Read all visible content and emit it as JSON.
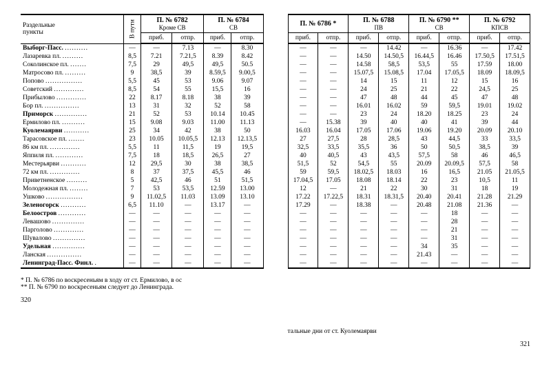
{
  "left": {
    "col_station": "Раздельные\nпункты",
    "col_vputi": "В пути",
    "trains": [
      {
        "no": "П. № 6782",
        "sub": "Кроме СВ"
      },
      {
        "no": "П. № 6784",
        "sub": "СВ"
      }
    ],
    "prib": "приб.",
    "otpr": "отпр.",
    "stations": [
      {
        "name": "Выборг-Пасс.",
        "vp": "—",
        "cells": [
          "—",
          "7.13",
          "—",
          "8.30"
        ]
      },
      {
        "name": "Лазаревка пл.",
        "vp": "8,5",
        "cells": [
          "7.21",
          "7.21,5",
          "8.39",
          "8.42"
        ]
      },
      {
        "name": "Соколинское пл.",
        "vp": "7,5",
        "cells": [
          "29",
          "49,5",
          "49,5",
          "50.5"
        ]
      },
      {
        "name": "Матросово пл.",
        "vp": "9",
        "cells": [
          "38,5",
          "39",
          "8.59,5",
          "9.00,5"
        ]
      },
      {
        "name": "Попово",
        "vp": "5,5",
        "cells": [
          "45",
          "53",
          "9.06",
          "9.07"
        ]
      },
      {
        "name": "Советский",
        "vp": "8,5",
        "cells": [
          "54",
          "55",
          "15,5",
          "16"
        ]
      },
      {
        "name": "Прибылово",
        "vp": "22",
        "cells": [
          "8.17",
          "8.18",
          "38",
          "39"
        ]
      },
      {
        "name": "Бор пл.",
        "vp": "13",
        "cells": [
          "31",
          "32",
          "52",
          "58"
        ]
      },
      {
        "name": "Приморск",
        "vp": "21",
        "cells": [
          "52",
          "53",
          "10.14",
          "10.45"
        ]
      },
      {
        "name": "Ермилово пл.",
        "vp": "15",
        "cells": [
          "9.08",
          "9.03",
          "11.00",
          "11.13"
        ]
      },
      {
        "name": "Куолемаярви",
        "vp": "25",
        "cells": [
          "34",
          "42",
          "38",
          "50"
        ]
      },
      {
        "name": "Тарасовское пл.",
        "vp": "23",
        "cells": [
          "10.05",
          "10.05,5",
          "12.13",
          "12.13,5"
        ]
      },
      {
        "name": "86 км пл.",
        "vp": "5,5",
        "cells": [
          "11",
          "11,5",
          "19",
          "19,5"
        ]
      },
      {
        "name": "Яппиля пл.",
        "vp": "7,5",
        "cells": [
          "18",
          "18,5",
          "26,5",
          "27"
        ]
      },
      {
        "name": "Местерьярви",
        "vp": "12",
        "cells": [
          "29,5",
          "30",
          "38",
          "38,5"
        ]
      },
      {
        "name": "72 км пл.",
        "vp": "8",
        "cells": [
          "37",
          "37,5",
          "45,5",
          "46"
        ]
      },
      {
        "name": "Приветненское",
        "vp": "5",
        "cells": [
          "42,5",
          "46",
          "51",
          "51,5"
        ]
      },
      {
        "name": "Молодежная пл.",
        "vp": "7",
        "cells": [
          "53",
          "53,5",
          "12.59",
          "13.00"
        ]
      },
      {
        "name": "Ушково",
        "vp": "9",
        "cells": [
          "11.02,5",
          "11.03",
          "13.09",
          "13.10"
        ]
      },
      {
        "name": "Зеленогорск",
        "vp": "6,5",
        "cells": [
          "11.10",
          "—",
          "13.17",
          "—"
        ]
      },
      {
        "name": "Белоостров",
        "vp": "—",
        "cells": [
          "—",
          "—",
          "—",
          "—"
        ]
      },
      {
        "name": "Левашово",
        "vp": "—",
        "cells": [
          "—",
          "—",
          "—",
          "—"
        ]
      },
      {
        "name": "Парголово",
        "vp": "—",
        "cells": [
          "—",
          "—",
          "—",
          "—"
        ]
      },
      {
        "name": "Шувалово",
        "vp": "—",
        "cells": [
          "—",
          "—",
          "—",
          "—"
        ]
      },
      {
        "name": "Удельная",
        "vp": "—",
        "cells": [
          "—",
          "—",
          "—",
          "—"
        ]
      },
      {
        "name": "Ланская",
        "vp": "—",
        "cells": [
          "—",
          "—",
          "—",
          "—"
        ]
      },
      {
        "name": "Ленинград-Пасс. Финл.",
        "vp": "—",
        "cells": [
          "—",
          "—",
          "—",
          "—"
        ]
      }
    ],
    "footnote1": "* П. № 6786 по воскресеньям в ходу от ст. Ермилово, в ос",
    "footnote2": "** П. № 6790 по воскресеньям следует до Ленинграда.",
    "pagenum": "320"
  },
  "right": {
    "trains": [
      {
        "no": "П. № 6786 *",
        "sub": ""
      },
      {
        "no": "П. № 6788",
        "sub": "ПВ"
      },
      {
        "no": "П. № 6790 **",
        "sub": "СВ"
      },
      {
        "no": "П. № 6792",
        "sub": "КПСВ"
      }
    ],
    "prib": "приб.",
    "otpr": "отпр.",
    "rows": [
      [
        "—",
        "—",
        "—",
        "14.42",
        "—",
        "16.36",
        "—",
        "17.42"
      ],
      [
        "—",
        "—",
        "14.50",
        "14.50,5",
        "16.44,5",
        "16.46",
        "17.50,5",
        "17.51,5"
      ],
      [
        "—",
        "—",
        "14.58",
        "58,5",
        "53,5",
        "55",
        "17.59",
        "18.00"
      ],
      [
        "—",
        "—",
        "15.07,5",
        "15.08,5",
        "17.04",
        "17.05,5",
        "18.09",
        "18.09,5"
      ],
      [
        "—",
        "—",
        "14",
        "15",
        "11",
        "12",
        "15",
        "16"
      ],
      [
        "—",
        "—",
        "24",
        "25",
        "21",
        "22",
        "24,5",
        "25"
      ],
      [
        "—",
        "—",
        "47",
        "48",
        "44",
        "45",
        "47",
        "48"
      ],
      [
        "—",
        "—",
        "16.01",
        "16.02",
        "59",
        "59,5",
        "19.01",
        "19.02"
      ],
      [
        "—",
        "—",
        "23",
        "24",
        "18.20",
        "18.25",
        "23",
        "24"
      ],
      [
        "—",
        "15.38",
        "39",
        "40",
        "40",
        "41",
        "39",
        "44"
      ],
      [
        "16.03",
        "16.04",
        "17.05",
        "17.06",
        "19.06",
        "19.20",
        "20.09",
        "20.10"
      ],
      [
        "27",
        "27,5",
        "28",
        "28,5",
        "43",
        "44,5",
        "33",
        "33,5"
      ],
      [
        "32,5",
        "33,5",
        "35,5",
        "36",
        "50",
        "50,5",
        "38,5",
        "39"
      ],
      [
        "40",
        "40,5",
        "43",
        "43,5",
        "57,5",
        "58",
        "46",
        "46,5"
      ],
      [
        "51,5",
        "52",
        "54,5",
        "55",
        "20.09",
        "20.09,5",
        "57,5",
        "58"
      ],
      [
        "59",
        "59,5",
        "18.02,5",
        "18.03",
        "16",
        "16,5",
        "21.05",
        "21.05,5"
      ],
      [
        "17.04,5",
        "17.05",
        "18.08",
        "18.14",
        "22",
        "23",
        "10,5",
        "11"
      ],
      [
        "12",
        "—",
        "21",
        "22",
        "30",
        "31",
        "18",
        "19"
      ],
      [
        "17.22",
        "17.22,5",
        "18.31",
        "18.31,5",
        "20.40",
        "20.41",
        "21.28",
        "21.29"
      ],
      [
        "17.29",
        "—",
        "18.38",
        "—",
        "20.48",
        "21.08",
        "21.36",
        "—"
      ],
      [
        "—",
        "—",
        "—",
        "—",
        "—",
        "18",
        "—",
        "—"
      ],
      [
        "—",
        "—",
        "—",
        "—",
        "—",
        "28",
        "—",
        "—"
      ],
      [
        "—",
        "—",
        "—",
        "—",
        "—",
        "21",
        "—",
        "—"
      ],
      [
        "—",
        "—",
        "—",
        "—",
        "—",
        "31",
        "—",
        "—"
      ],
      [
        "—",
        "—",
        "—",
        "—",
        "34",
        "35",
        "—",
        "—"
      ],
      [
        "—",
        "—",
        "—",
        "—",
        "21.43",
        "—",
        "—",
        "—"
      ],
      [
        "—",
        "—",
        "—",
        "—",
        "—",
        "—",
        "—",
        "—"
      ]
    ],
    "tailnote": "тальные дни от ст. Куолемаярви",
    "pagenum": "321"
  }
}
